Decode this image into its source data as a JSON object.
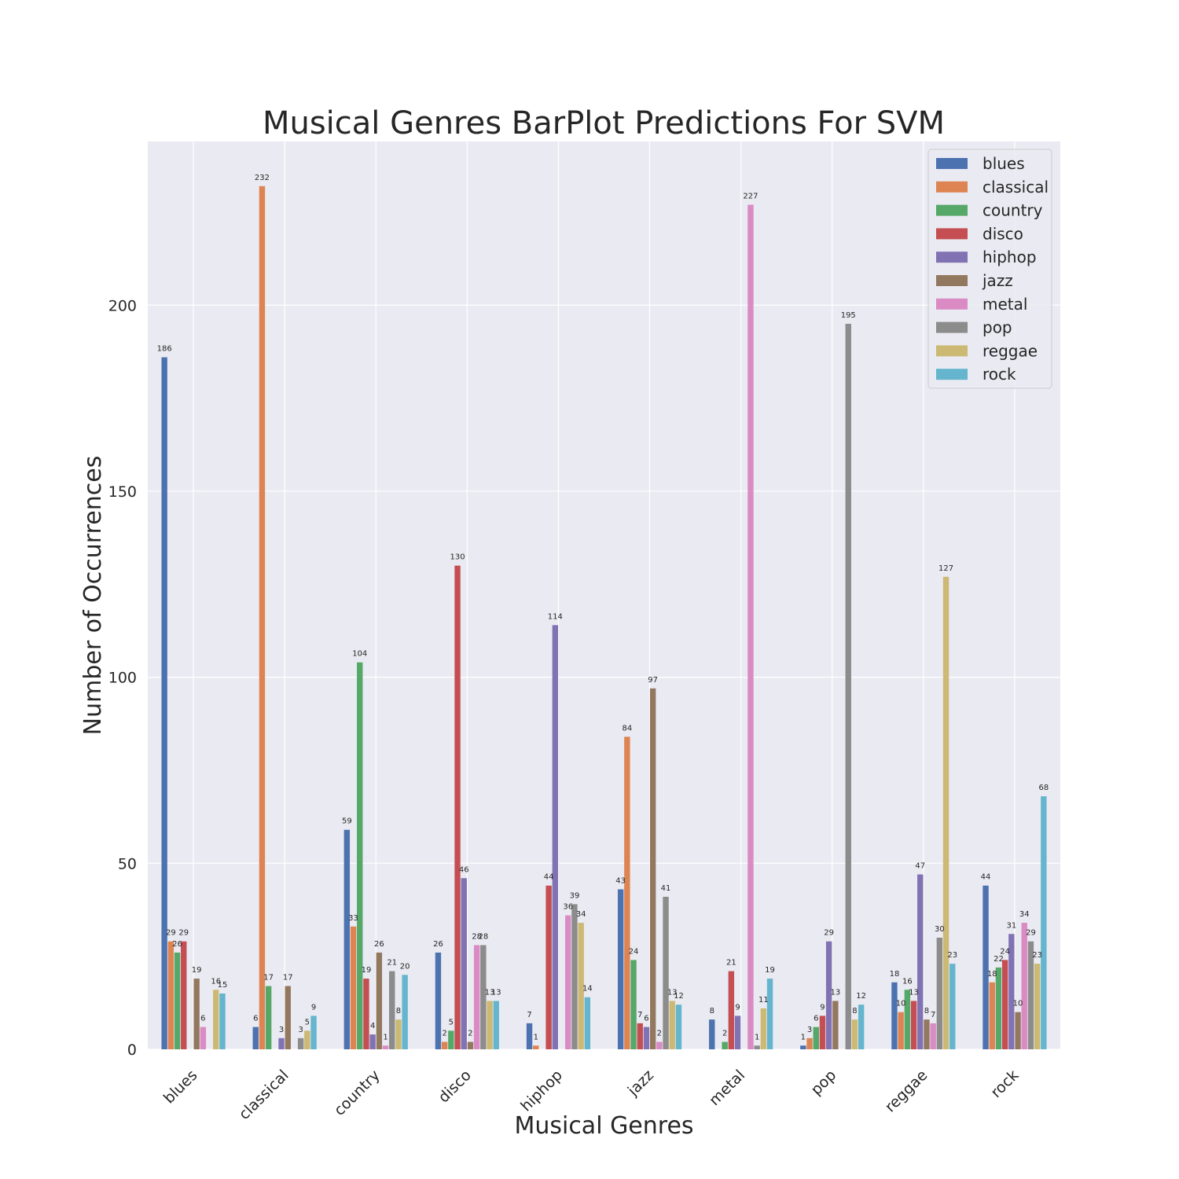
{
  "chart_data": {
    "type": "bar",
    "title": "Musical Genres BarPlot Predictions For SVM",
    "xlabel": "Musical Genres",
    "ylabel": "Number of Occurrences",
    "ylim": [
      0,
      244
    ],
    "yticks": [
      0,
      50,
      100,
      150,
      200
    ],
    "grid": true,
    "legend_position": "top-right",
    "categories": [
      "blues",
      "classical",
      "country",
      "disco",
      "hiphop",
      "jazz",
      "metal",
      "pop",
      "reggae",
      "rock"
    ],
    "series": [
      {
        "name": "blues",
        "color": "#4c72b0",
        "values": [
          186,
          6,
          59,
          26,
          7,
          43,
          8,
          1,
          18,
          44
        ]
      },
      {
        "name": "classical",
        "color": "#dd8452",
        "values": [
          29,
          232,
          33,
          2,
          1,
          84,
          0,
          3,
          10,
          18
        ]
      },
      {
        "name": "country",
        "color": "#55a868",
        "values": [
          26,
          17,
          104,
          5,
          0,
          24,
          2,
          6,
          16,
          22
        ]
      },
      {
        "name": "disco",
        "color": "#c44e52",
        "values": [
          29,
          0,
          19,
          130,
          44,
          7,
          21,
          9,
          13,
          24
        ]
      },
      {
        "name": "hiphop",
        "color": "#8172b3",
        "values": [
          0,
          3,
          4,
          46,
          114,
          6,
          9,
          29,
          47,
          31
        ]
      },
      {
        "name": "jazz",
        "color": "#937860",
        "values": [
          19,
          17,
          26,
          2,
          0,
          97,
          0,
          13,
          8,
          10
        ]
      },
      {
        "name": "metal",
        "color": "#da8bc3",
        "values": [
          6,
          0,
          1,
          28,
          36,
          2,
          227,
          0,
          7,
          34
        ]
      },
      {
        "name": "pop",
        "color": "#8c8c8c",
        "values": [
          0,
          3,
          21,
          28,
          39,
          41,
          1,
          195,
          30,
          29
        ]
      },
      {
        "name": "reggae",
        "color": "#ccb974",
        "values": [
          16,
          5,
          8,
          13,
          34,
          13,
          11,
          8,
          127,
          23
        ]
      },
      {
        "name": "rock",
        "color": "#64b5cd",
        "values": [
          15,
          9,
          20,
          13,
          14,
          12,
          19,
          12,
          23,
          68
        ]
      }
    ]
  }
}
